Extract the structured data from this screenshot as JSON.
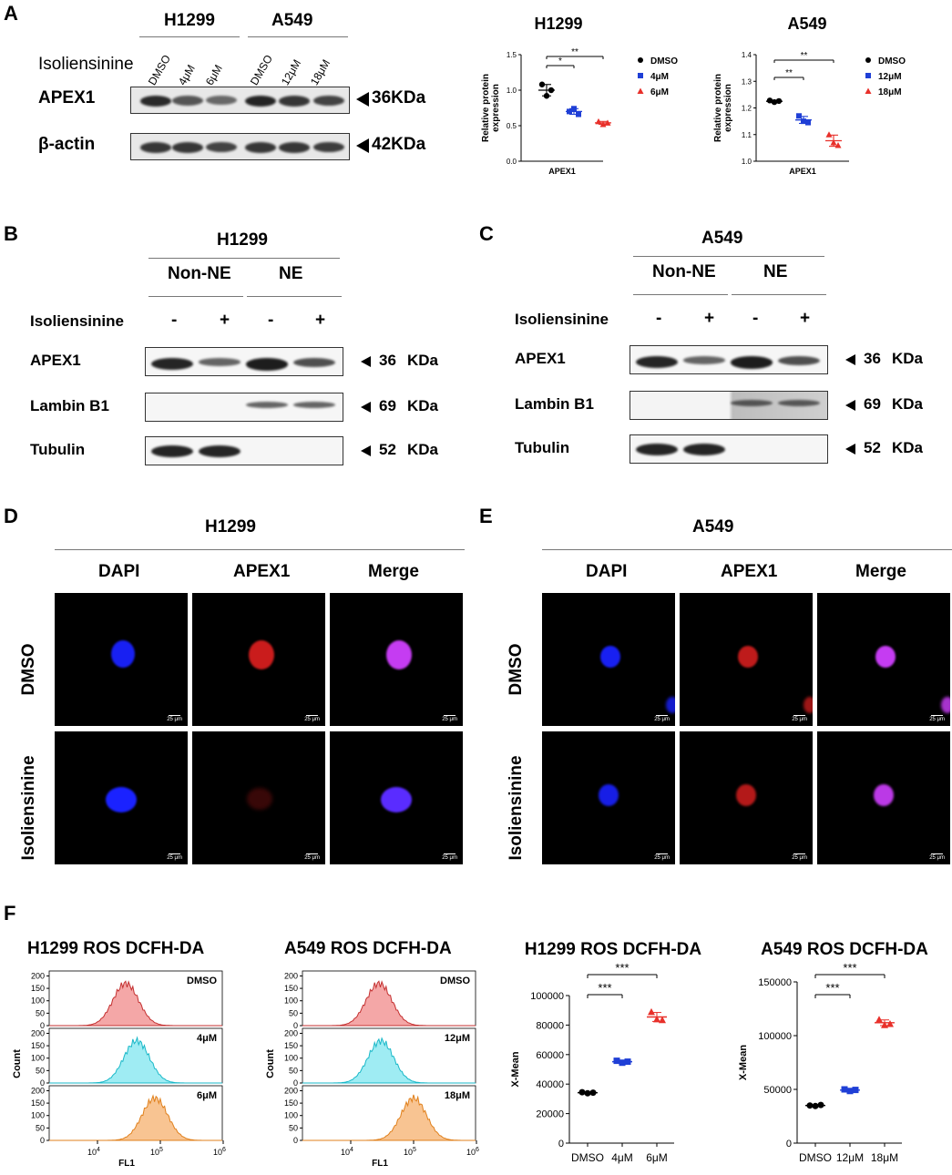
{
  "colors": {
    "dmso": "#000000",
    "low": "#1f3fd6",
    "high": "#e8302a",
    "hist_dmso": "#f08a8a",
    "hist_low": "#7fe6ef",
    "hist_high": "#f6b06e",
    "dapi": "#1a22ff",
    "apex": "#e02020",
    "merge": "#d040ff"
  },
  "panelA": {
    "letter": "A",
    "cell1": "H1299",
    "cell2": "A549",
    "treatment": "Isoliensinine",
    "lanes": [
      "DMSO",
      "4μM",
      "6μM",
      "DMSO",
      "12μM",
      "18μM"
    ],
    "rows": [
      {
        "name": "APEX1",
        "size": "36KDa"
      },
      {
        "name": "β-actin",
        "size": "42KDa"
      }
    ]
  },
  "panelB": {
    "letter": "B",
    "cell": "H1299",
    "groups": [
      "Non-NE",
      "NE"
    ],
    "treatment": "Isoliensinine",
    "signs": [
      "-",
      "+",
      "-",
      "+"
    ],
    "rows": [
      {
        "name": "APEX1",
        "arrow_num": "36",
        "unit": "KDa"
      },
      {
        "name": "Lambin B1",
        "arrow_num": "69",
        "unit": "KDa"
      },
      {
        "name": "Tubulin",
        "arrow_num": "52",
        "unit": "KDa"
      }
    ]
  },
  "panelC": {
    "letter": "C",
    "cell": "A549",
    "groups": [
      "Non-NE",
      "NE"
    ],
    "treatment": "Isoliensinine",
    "signs": [
      "-",
      "+",
      "-",
      "+"
    ],
    "rows": [
      {
        "name": "APEX1",
        "arrow_num": "36",
        "unit": "KDa"
      },
      {
        "name": "Lambin B1",
        "arrow_num": "69",
        "unit": "KDa"
      },
      {
        "name": "Tubulin",
        "arrow_num": "52",
        "unit": "KDa"
      }
    ]
  },
  "panelD": {
    "letter": "D",
    "cell": "H1299",
    "cols": [
      "DAPI",
      "APEX1",
      "Merge"
    ],
    "rows": [
      "DMSO",
      "Isoliensinine"
    ],
    "scale": "25 μm"
  },
  "panelE": {
    "letter": "E",
    "cell": "A549",
    "cols": [
      "DAPI",
      "APEX1",
      "Merge"
    ],
    "rows": [
      "DMSO",
      "Isoliensinine"
    ],
    "scale": "25 μm"
  },
  "panelF": {
    "letter": "F",
    "hist1": {
      "title": "H1299 ROS DCFH-DA",
      "labels": [
        "DMSO",
        "4μM",
        "6μM"
      ],
      "yticks": [
        "0",
        "50",
        "100",
        "150",
        "200"
      ],
      "ylabel": "Count",
      "xlabel": "FL1",
      "xticks": [
        "10",
        "10",
        "10"
      ],
      "xexp": [
        "4",
        "5",
        "6"
      ]
    },
    "hist2": {
      "title": "A549 ROS DCFH-DA",
      "labels": [
        "DMSO",
        "12μM",
        "18μM"
      ],
      "yticks": [
        "0",
        "50",
        "100",
        "150",
        "200"
      ],
      "ylabel": "Count",
      "xlabel": "FL1",
      "xticks": [
        "10",
        "10",
        "10"
      ],
      "xexp": [
        "4",
        "5",
        "6"
      ]
    }
  },
  "chart_data": [
    {
      "type": "scatter",
      "title": "H1299",
      "xlabel": "APEX1",
      "ylabel": "Relative protein expression",
      "ylim": [
        0,
        1.5
      ],
      "yticks": [
        "0.0",
        "0.5",
        "1.0",
        "1.5"
      ],
      "legend": [
        "DMSO",
        "4μM",
        "6μM"
      ],
      "series": [
        {
          "name": "DMSO",
          "values": [
            1.08,
            0.92,
            1.0
          ],
          "mean": 1.0,
          "sd": 0.08
        },
        {
          "name": "4μM",
          "values": [
            0.7,
            0.74,
            0.66
          ],
          "mean": 0.7,
          "sd": 0.04
        },
        {
          "name": "6μM",
          "values": [
            0.56,
            0.52,
            0.54
          ],
          "mean": 0.54,
          "sd": 0.02
        }
      ],
      "sig": [
        "*",
        "**"
      ]
    },
    {
      "type": "scatter",
      "title": "A549",
      "xlabel": "APEX1",
      "ylabel": "Relative protein expression",
      "ylim": [
        1.0,
        1.4
      ],
      "yticks": [
        "1.0",
        "1.1",
        "1.2",
        "1.3",
        "1.4"
      ],
      "legend": [
        "DMSO",
        "12μM",
        "18μM"
      ],
      "series": [
        {
          "name": "DMSO",
          "values": [
            1.228,
            1.222,
            1.226
          ],
          "mean": 1.225,
          "sd": 0.004
        },
        {
          "name": "12μM",
          "values": [
            1.17,
            1.15,
            1.145
          ],
          "mean": 1.155,
          "sd": 0.013
        },
        {
          "name": "18μM",
          "values": [
            1.1,
            1.07,
            1.06
          ],
          "mean": 1.077,
          "sd": 0.021
        }
      ],
      "sig": [
        "**",
        "**"
      ]
    },
    {
      "type": "scatter",
      "title": "H1299 ROS DCFH-DA",
      "xlabel": "",
      "ylabel": "X-Mean",
      "ylim": [
        0,
        100000
      ],
      "yticks": [
        "0",
        "20000",
        "40000",
        "60000",
        "80000",
        "100000"
      ],
      "categories": [
        "DMSO",
        "4μM",
        "6μM"
      ],
      "series": [
        {
          "name": "DMSO",
          "values": [
            34500,
            33800,
            34200
          ]
        },
        {
          "name": "4μM",
          "values": [
            55800,
            54500,
            55200
          ]
        },
        {
          "name": "6μM",
          "values": [
            89000,
            84000,
            83500
          ]
        }
      ],
      "sig": [
        "***",
        "***"
      ]
    },
    {
      "type": "scatter",
      "title": "A549 ROS DCFH-DA",
      "xlabel": "",
      "ylabel": "X-Mean",
      "ylim": [
        0,
        150000
      ],
      "yticks": [
        "0",
        "50000",
        "100000",
        "150000"
      ],
      "categories": [
        "DMSO",
        "12μM",
        "18μM"
      ],
      "series": [
        {
          "name": "DMSO",
          "values": [
            35000,
            34500,
            35500
          ]
        },
        {
          "name": "12μM",
          "values": [
            50000,
            48500,
            49500
          ]
        },
        {
          "name": "18μM",
          "values": [
            115000,
            110000,
            111000
          ]
        }
      ],
      "sig": [
        "***",
        "***"
      ]
    }
  ]
}
